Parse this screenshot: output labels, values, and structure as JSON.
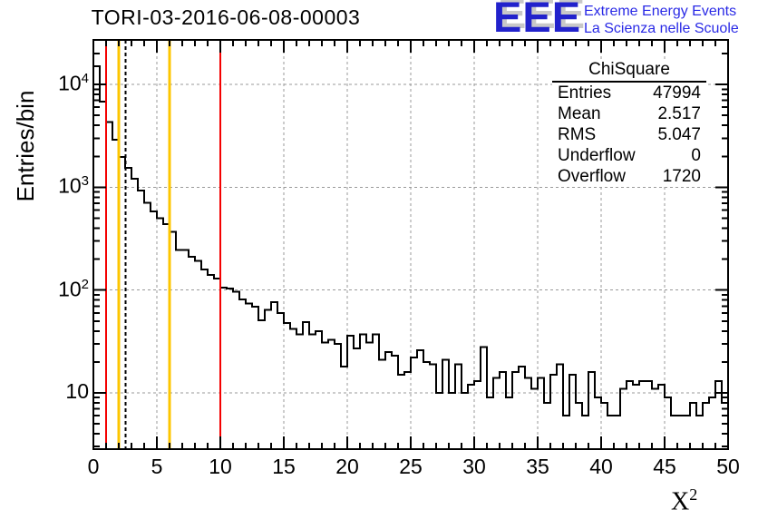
{
  "title_bar": {
    "plot_title": "TORI-03-2016-06-08-00003"
  },
  "logo": {
    "letters": "EEE",
    "line1": "Extreme Energy Events",
    "line2": "La Scienza nelle Scuole",
    "blue": "#2222cc",
    "text_blue": "#2a2ae6",
    "shadow_gray": "#c8c8c8"
  },
  "stats": {
    "title": "ChiSquare",
    "rows": [
      {
        "label": "Entries",
        "value": "47994"
      },
      {
        "label": "Mean",
        "value": "2.517"
      },
      {
        "label": "RMS",
        "value": "5.047"
      },
      {
        "label": "Underflow",
        "value": "0"
      },
      {
        "label": "Overflow",
        "value": "1720"
      }
    ]
  },
  "chart_data": {
    "type": "bar",
    "subtype": "histogram-step",
    "title": "TORI-03-2016-06-08-00003",
    "xlabel_base": "X",
    "xlabel_sup": "2",
    "ylabel": "Entries/bin",
    "xlim": [
      0,
      50
    ],
    "ylim": [
      2.84,
      27000
    ],
    "ylog": true,
    "grid": "dashed-gray-at-major-ticks",
    "bin_start": 0,
    "bin_width": 0.5,
    "values": [
      15000,
      6800,
      4300,
      2900,
      1970,
      1550,
      1210,
      930,
      710,
      580,
      500,
      440,
      370,
      245,
      245,
      211,
      193,
      158,
      140,
      129,
      106,
      104,
      96,
      81,
      74,
      69,
      51,
      64,
      76,
      60,
      48,
      42,
      37,
      49,
      37,
      40,
      31,
      33,
      30,
      18,
      36,
      27,
      37,
      31,
      37,
      21,
      25,
      23,
      15,
      16,
      22,
      26,
      20,
      19,
      10,
      21,
      10,
      19,
      10,
      12,
      13,
      28,
      9,
      14,
      16,
      9,
      16,
      18,
      14,
      11,
      14,
      8,
      15,
      19,
      6,
      15,
      8,
      6,
      16,
      9,
      8,
      6,
      6,
      11,
      13,
      12,
      13,
      13,
      11,
      12,
      9,
      6,
      6,
      6,
      8,
      6,
      8,
      9,
      13,
      8
    ],
    "x_major_ticks": [
      0,
      5,
      10,
      15,
      20,
      25,
      30,
      35,
      40,
      45,
      50
    ],
    "x_minor_step": 1,
    "y_ticks": [
      {
        "value": 10,
        "base": "10",
        "sup": ""
      },
      {
        "value": 100,
        "base": "10",
        "sup": "2"
      },
      {
        "value": 1000,
        "base": "10",
        "sup": "3"
      },
      {
        "value": 10000,
        "base": "10",
        "sup": "4"
      }
    ],
    "vlines": [
      {
        "x": 1,
        "color": "#f40000",
        "style": "solid",
        "width": 2.4
      },
      {
        "x": 2,
        "color": "#fdc600",
        "style": "solid",
        "width": 3
      },
      {
        "x": 2.52,
        "color": "#000000",
        "style": "dashed",
        "width": 2
      },
      {
        "x": 6,
        "color": "#fdc600",
        "style": "solid",
        "width": 3
      },
      {
        "x": 10,
        "color": "#f40000",
        "style": "solid",
        "width": 2.4
      }
    ],
    "line_color": "#000000",
    "grid_color": "#9a9a9a"
  }
}
